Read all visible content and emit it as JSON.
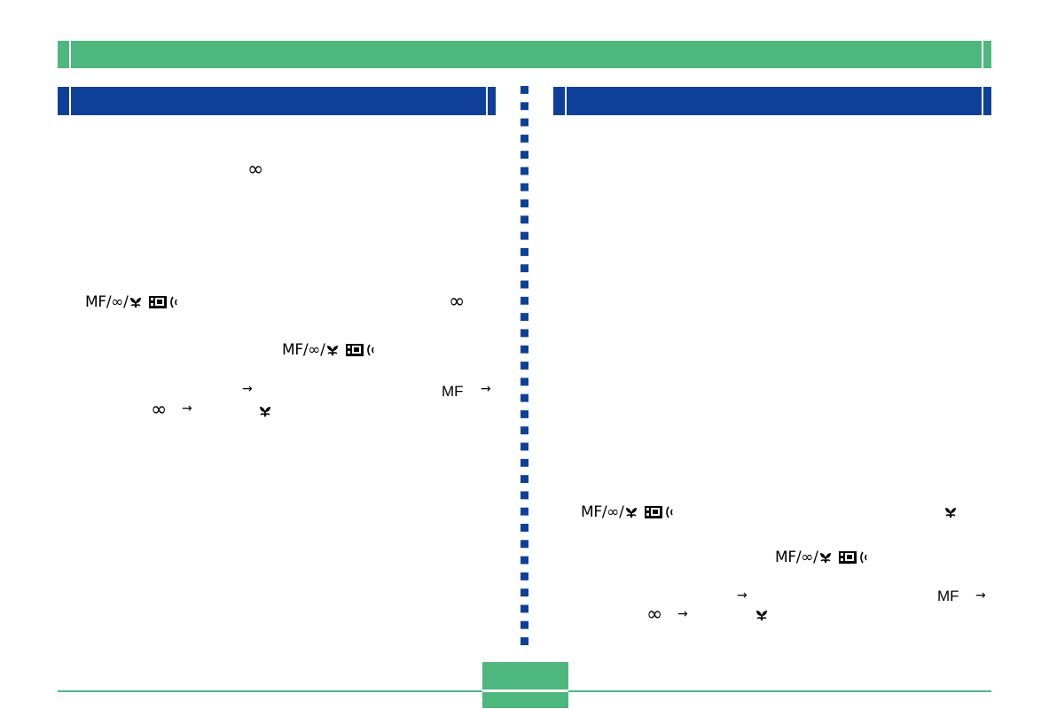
{
  "symbols": {
    "infinity": "∞",
    "arrow": "→",
    "mf": "MF",
    "focus_combo": "MF/∞/"
  },
  "icons": [
    "macro-flower-icon",
    "lcd-monitor-icon",
    "sound-wave-icon"
  ],
  "colors": {
    "header_green": "#4db77e",
    "section_blue": "#0e4099",
    "divider_blue": "#0e4099"
  }
}
